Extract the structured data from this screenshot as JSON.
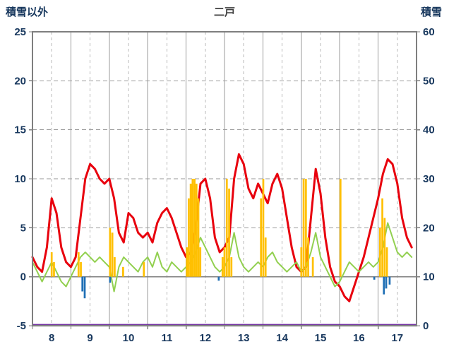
{
  "header": {
    "left_axis_label": "積雪以外",
    "title": "二戸",
    "right_axis_label": "積雪"
  },
  "chart_data": {
    "type": "line",
    "title": "二戸",
    "x_axis": {
      "min": 8,
      "max": 18,
      "ticks": [
        8,
        9,
        10,
        11,
        12,
        13,
        14,
        15,
        16,
        17
      ]
    },
    "left_axis": {
      "label": "積雪以外",
      "min": -5,
      "max": 25,
      "ticks": [
        25,
        20,
        15,
        10,
        5,
        0,
        -5
      ]
    },
    "right_axis": {
      "label": "積雪",
      "min": 0,
      "max": 60,
      "ticks": [
        60,
        50,
        40,
        30,
        20,
        10,
        0
      ]
    },
    "grid": {
      "on": true,
      "h_gridlines_at": [
        20,
        15,
        10,
        5
      ],
      "zero_line_at": 0
    },
    "style": {
      "text_color": "#17375d",
      "title_color": "#3f3f3f",
      "frame_color": "#7f7f7f",
      "grid_color": "#9a9a9a",
      "grid_half_color": "#b8b8b8",
      "zero_line_color": "#808080"
    },
    "series": [
      {
        "name": "red-line",
        "type": "line",
        "axis": "left",
        "color": "#e8000d",
        "width": 3,
        "x_start": 8,
        "x_step": 0.125,
        "values": [
          2,
          1,
          0.5,
          3,
          8,
          6.5,
          3,
          1.5,
          1,
          2,
          6,
          10,
          11.5,
          11,
          10,
          9.5,
          10,
          8,
          4.5,
          3.5,
          6.5,
          6,
          4.5,
          4,
          4.5,
          3.5,
          5.5,
          6.5,
          7,
          6,
          4.5,
          3,
          2,
          2.5,
          5,
          9.5,
          10,
          8,
          4,
          2.5,
          3,
          4,
          10,
          12.5,
          11.5,
          9,
          8,
          9.5,
          8.5,
          7.5,
          9.5,
          10.5,
          9,
          6,
          3,
          1,
          0.5,
          1,
          6,
          11,
          8.5,
          4,
          1,
          -0.5,
          -1,
          -2,
          -2.5,
          -1,
          0.5,
          2,
          4,
          6,
          8,
          10.5,
          12,
          11.5,
          9.5,
          6,
          4,
          3
        ]
      },
      {
        "name": "green-line",
        "type": "line",
        "axis": "left",
        "color": "#92d050",
        "width": 2,
        "x_start": 8,
        "x_step": 0.125,
        "values": [
          1.5,
          0.5,
          -0.5,
          0.5,
          1.5,
          0.5,
          -0.5,
          -1,
          0,
          1,
          2,
          2.5,
          2,
          1.5,
          2,
          1.5,
          1,
          -1.5,
          1,
          2,
          1.5,
          1,
          0.5,
          1.5,
          2,
          1,
          2.5,
          1,
          0.5,
          1.5,
          1,
          0.5,
          1,
          1.5,
          2.5,
          4,
          3,
          2,
          1,
          0.5,
          1,
          2,
          4.5,
          2,
          1,
          0.5,
          1,
          1.5,
          1,
          2,
          2.5,
          1.5,
          1,
          0.5,
          1,
          1.5,
          0.5,
          1,
          2.5,
          4.5,
          2,
          1,
          0,
          -1,
          -0.5,
          0.5,
          1.5,
          1,
          0.5,
          1,
          1.5,
          1,
          1.5,
          3,
          5.5,
          4,
          2.5,
          2,
          2.5,
          2
        ]
      },
      {
        "name": "orange-bars",
        "type": "bar",
        "axis": "left",
        "color": "#ffc000",
        "bar_width_days": 0.05,
        "points": [
          [
            8.5,
            2.5
          ],
          [
            8.56,
            1.5
          ],
          [
            9.2,
            2.5
          ],
          [
            9.26,
            1.5
          ],
          [
            10.02,
            5
          ],
          [
            10.08,
            4.5
          ],
          [
            10.14,
            2
          ],
          [
            10.36,
            1
          ],
          [
            10.9,
            1.5
          ],
          [
            12.02,
            3
          ],
          [
            12.07,
            8
          ],
          [
            12.12,
            9.5
          ],
          [
            12.17,
            10
          ],
          [
            12.22,
            10
          ],
          [
            12.27,
            9.5
          ],
          [
            12.32,
            8
          ],
          [
            12.37,
            3
          ],
          [
            12.95,
            2
          ],
          [
            13.0,
            3
          ],
          [
            13.06,
            10
          ],
          [
            13.12,
            9
          ],
          [
            13.18,
            2
          ],
          [
            13.95,
            8
          ],
          [
            14.01,
            10
          ],
          [
            14.07,
            4
          ],
          [
            15.0,
            3
          ],
          [
            15.06,
            10
          ],
          [
            15.12,
            10
          ],
          [
            15.18,
            4
          ],
          [
            15.3,
            2
          ],
          [
            16.02,
            10
          ],
          [
            17.05,
            5
          ],
          [
            17.11,
            8
          ],
          [
            17.17,
            6
          ],
          [
            17.23,
            3
          ]
        ]
      },
      {
        "name": "blue-bars",
        "type": "bar",
        "axis": "left",
        "color": "#1f6fb5",
        "bar_width_days": 0.05,
        "points": [
          [
            9.3,
            -1.5
          ],
          [
            9.36,
            -2.2
          ],
          [
            10.02,
            -0.6
          ],
          [
            12.85,
            -0.4
          ],
          [
            16.9,
            -0.3
          ],
          [
            17.15,
            -1.8
          ],
          [
            17.21,
            -1.2
          ],
          [
            17.3,
            -0.8
          ]
        ]
      },
      {
        "name": "purple-snow-line",
        "type": "hline",
        "axis": "right",
        "value": 0,
        "color": "#7030a0",
        "width": 2.5
      }
    ]
  }
}
